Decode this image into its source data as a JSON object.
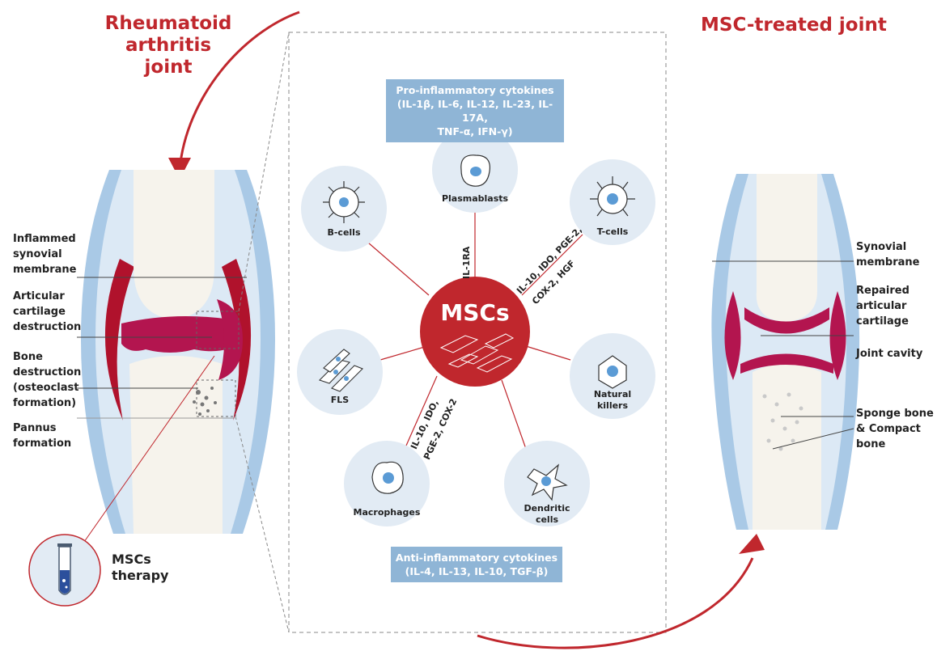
{
  "left_joint": {
    "title_line1": "Rheumatoid",
    "title_line2": "arthritis joint",
    "labels": [
      {
        "id": "inflamed",
        "lines": [
          "Inflammed",
          "synovial",
          "membrane"
        ]
      },
      {
        "id": "cartilage",
        "lines": [
          "Articular",
          "cartilage",
          "destruction"
        ]
      },
      {
        "id": "bone",
        "lines": [
          "Bone",
          "destruction",
          "(osteoclast",
          "formation)"
        ]
      },
      {
        "id": "pannus",
        "lines": [
          "Pannus",
          "formation"
        ]
      }
    ]
  },
  "right_joint": {
    "title": "MSC-treated joint",
    "labels": [
      {
        "id": "synovial",
        "lines": [
          "Synovial",
          "membrane"
        ]
      },
      {
        "id": "repaired",
        "lines": [
          "Repaired",
          "articular",
          "cartilage"
        ]
      },
      {
        "id": "cavity",
        "lines": [
          "Joint cavity"
        ]
      },
      {
        "id": "sponge",
        "lines": [
          "Sponge bone",
          "& Compact",
          "bone"
        ]
      }
    ]
  },
  "center": {
    "hub_label": "MSCs",
    "pro_cytokines": {
      "line1": "Pro-inflammatory cytokines",
      "line2": "(IL-1β, IL-6, IL-12, IL-23, IL-17A,",
      "line3": "TNF-α, IFN-γ)"
    },
    "anti_cytokines": {
      "line1": "Anti-inflammatory cytokines",
      "line2": "(IL-4, IL-13, IL-10, TGF-β)"
    },
    "cells": [
      {
        "id": "bcells",
        "label": "B-cells"
      },
      {
        "id": "plasmablasts",
        "label": "Plasmablasts"
      },
      {
        "id": "tcells",
        "label": "T-cells"
      },
      {
        "id": "fls",
        "label": "FLS"
      },
      {
        "id": "nk",
        "label_line1": "Natural",
        "label_line2": "killers"
      },
      {
        "id": "macrophages",
        "label": "Macrophages"
      },
      {
        "id": "dendritic",
        "label_line1": "Dendritic",
        "label_line2": "cells"
      }
    ],
    "mediators": {
      "plasmablasts": "IL-1RA",
      "tcells_line1": "IL-10, IDO, PGE-2,",
      "tcells_line2": "COX-2, HGF",
      "macrophages_line1": "IL-10, IDO,",
      "macrophages_line2": "PGE-2, COX-2"
    }
  },
  "therapy": {
    "line1": "MSCs",
    "line2": "therapy"
  },
  "colors": {
    "accent_red": "#c0272d",
    "inflamed_red": "#b0122c",
    "cartilage_magenta": "#b3154f",
    "membrane_blue": "#a9c9e6",
    "cytokine_box": "#8fb5d6",
    "cell_circle": "#e2ebf4"
  }
}
